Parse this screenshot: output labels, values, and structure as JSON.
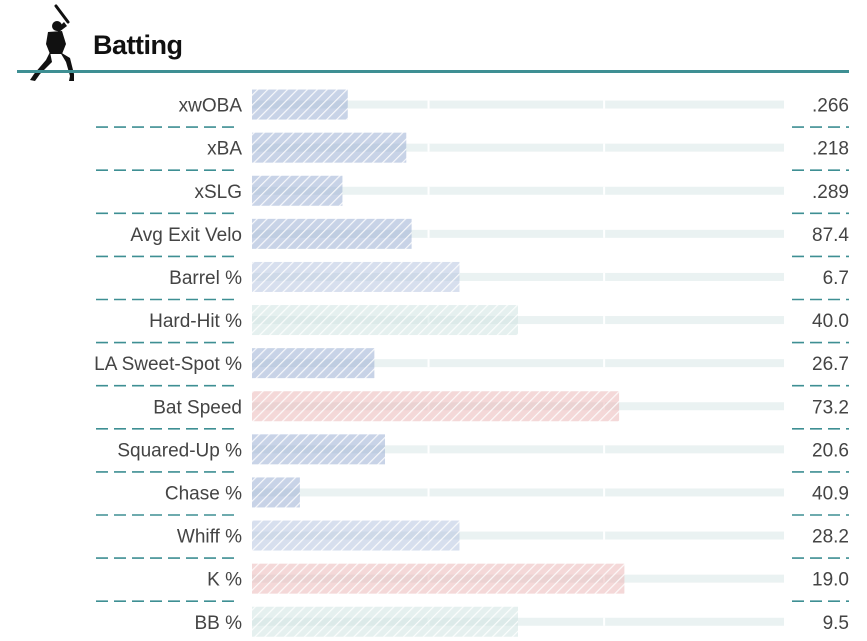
{
  "header": {
    "title": "Batting",
    "icon": "batter-silhouette-icon"
  },
  "colors": {
    "rule": "#3e8f93",
    "track": "#eaf2f2",
    "divider": "#3e8f93",
    "text": "#444444",
    "level_colors": {
      "blue": "#9aaed3",
      "light_blue": "#b6c4e0",
      "neutral": "#cfe3e1",
      "red": "#eab7b7"
    }
  },
  "chart_data": {
    "type": "bar",
    "orientation": "horizontal",
    "scale": [
      0,
      100
    ],
    "categories": [
      "xwOBA",
      "xBA",
      "xSLG",
      "Avg Exit Velo",
      "Barrel %",
      "Hard-Hit %",
      "LA Sweet-Spot %",
      "Bat Speed",
      "Squared-Up %",
      "Chase %",
      "Whiff %",
      "K %",
      "BB %"
    ],
    "percentiles": [
      18,
      29,
      17,
      30,
      39,
      50,
      23,
      69,
      25,
      9,
      39,
      70,
      50
    ],
    "value_labels": [
      ".266",
      ".218",
      ".289",
      "87.4",
      "6.7",
      "40.0",
      "26.7",
      "73.2",
      "20.6",
      "40.9",
      "28.2",
      "19.0",
      "9.5"
    ],
    "bar_colors": [
      "blue",
      "blue",
      "blue",
      "blue",
      "light_blue",
      "neutral",
      "blue",
      "red",
      "blue",
      "blue",
      "light_blue",
      "red",
      "neutral"
    ]
  }
}
